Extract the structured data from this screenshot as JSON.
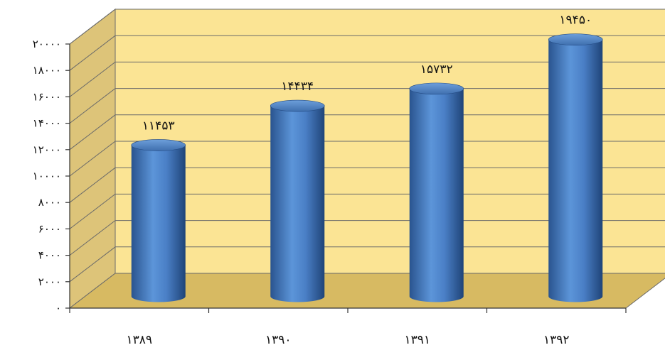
{
  "chart_data": {
    "type": "bar",
    "style": "3d-cylinder",
    "categories": [
      "۱۳۸۹",
      "۱۳۹۰",
      "۱۳۹۱",
      "۱۳۹۲"
    ],
    "values": [
      11453,
      14434,
      15732,
      19450
    ],
    "data_labels": [
      "۱۱۴۵۳",
      "۱۴۴۳۴",
      "۱۵۷۳۲",
      "۱۹۴۵۰"
    ],
    "title": "",
    "xlabel": "",
    "ylabel": "",
    "ylim": [
      0,
      20000
    ],
    "yticks": [
      0,
      2000,
      4000,
      6000,
      8000,
      10000,
      12000,
      14000,
      16000,
      18000,
      20000
    ],
    "ytick_labels": [
      "۰",
      "۲۰۰۰",
      "۴۰۰۰",
      "۶۰۰۰",
      "۸۰۰۰",
      "۱۰۰۰۰",
      "۱۲۰۰۰",
      "۱۴۰۰۰",
      "۱۶۰۰۰",
      "۱۸۰۰۰",
      "۲۰۰۰۰"
    ],
    "grid": true,
    "legend": "none",
    "colors": {
      "bar": "#4a7fc6",
      "bar_dark": "#234a82",
      "wall": "#fbe494",
      "side_wall": "#ddc479",
      "floor": "#d7ba62",
      "grid": "#6a6a6a"
    }
  }
}
